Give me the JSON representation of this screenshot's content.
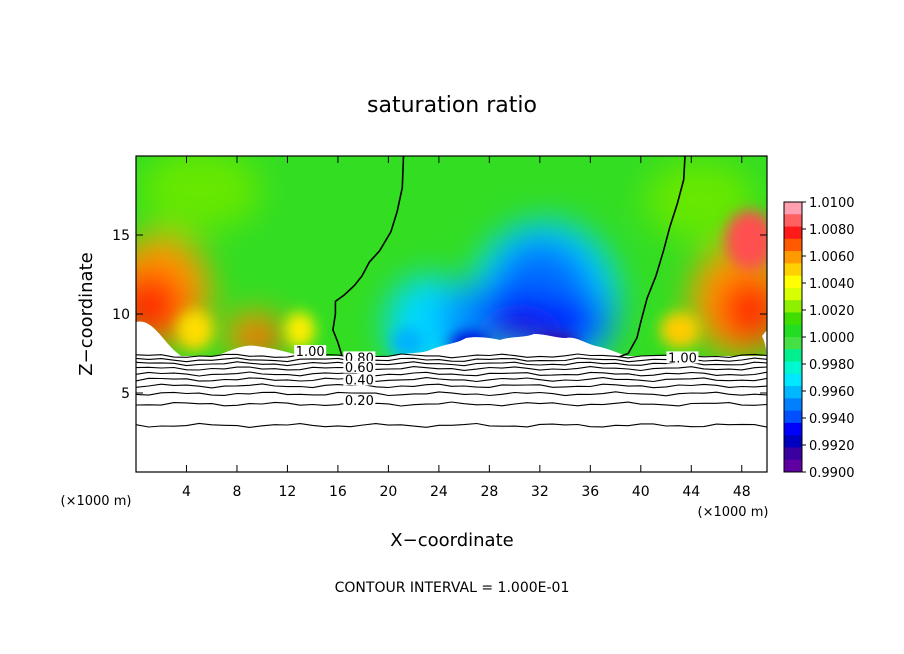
{
  "chart_data": {
    "type": "heatmap",
    "title": "saturation ratio",
    "xlabel": "X−coordinate",
    "ylabel": "Z−coordinate",
    "x_unit": "(×1000 m)",
    "x_unit_right": "(×1000 m)",
    "xlim": [
      0,
      50
    ],
    "ylim": [
      0,
      20
    ],
    "xticks": [
      4,
      8,
      12,
      16,
      20,
      24,
      28,
      32,
      36,
      40,
      44,
      48
    ],
    "yticks": [
      5,
      10,
      15
    ],
    "footer": "CONTOUR INTERVAL = 1.000E-01",
    "colorbar": {
      "levels": [
        "1.0100",
        "1.0080",
        "1.0060",
        "1.0040",
        "1.0020",
        "1.0000",
        "0.9980",
        "0.9960",
        "0.9940",
        "0.9920",
        "0.9900"
      ],
      "colors": [
        "#ff9fb0",
        "#ff6060",
        "#ff1a1a",
        "#ff5a00",
        "#ff9a00",
        "#ffd000",
        "#ffff00",
        "#d8ff00",
        "#8ef000",
        "#3fdd00",
        "#22dd22",
        "#44e044",
        "#00f090",
        "#00f8d0",
        "#00e8ff",
        "#00b8ff",
        "#0080ff",
        "#0050ff",
        "#0000ff",
        "#0000c0",
        "#3a00a0",
        "#6000a0"
      ]
    },
    "contour_labels": [
      {
        "text": "1.00",
        "x": 13.8,
        "z": 7.4
      },
      {
        "text": "0.80",
        "x": 17.7,
        "z": 7.0
      },
      {
        "text": "0.60",
        "x": 17.7,
        "z": 6.4
      },
      {
        "text": "0.40",
        "x": 17.7,
        "z": 5.6
      },
      {
        "text": "0.20",
        "x": 17.7,
        "z": 4.3
      },
      {
        "text": "1.00",
        "x": 43.3,
        "z": 7.0
      }
    ],
    "saturation_contour_left": [
      [
        21.2,
        20
      ],
      [
        21.1,
        18
      ],
      [
        20.7,
        16.5
      ],
      [
        20.2,
        15.2
      ],
      [
        19.3,
        14
      ],
      [
        18.5,
        13.3
      ],
      [
        17.9,
        12.4
      ],
      [
        17.3,
        11.8
      ],
      [
        16.5,
        11.2
      ],
      [
        15.8,
        10.8
      ],
      [
        15.8,
        10
      ],
      [
        15.6,
        9
      ],
      [
        16.0,
        8.2
      ],
      [
        16.3,
        7.4
      ]
    ],
    "saturation_contour_right": [
      [
        43.5,
        20
      ],
      [
        43.4,
        18.5
      ],
      [
        42.9,
        17
      ],
      [
        42.3,
        15.5
      ],
      [
        41.8,
        14
      ],
      [
        41.2,
        12.4
      ],
      [
        40.5,
        11.0
      ],
      [
        40.0,
        9.5
      ],
      [
        39.7,
        8.5
      ],
      [
        39.0,
        7.5
      ],
      [
        38.3,
        7.3
      ]
    ],
    "isolines_below_cloud": [
      {
        "level": "1.00",
        "z": 7.35
      },
      {
        "level": "0.90",
        "z": 7.1
      },
      {
        "level": "0.80",
        "z": 6.85
      },
      {
        "level": "0.70",
        "z": 6.55
      },
      {
        "level": "0.60",
        "z": 6.2
      },
      {
        "level": "0.50",
        "z": 5.85
      },
      {
        "level": "0.40",
        "z": 5.45
      },
      {
        "level": "0.30",
        "z": 4.95
      },
      {
        "level": "0.20",
        "z": 4.3
      },
      {
        "level": "0.10",
        "z": 2.95
      }
    ]
  }
}
